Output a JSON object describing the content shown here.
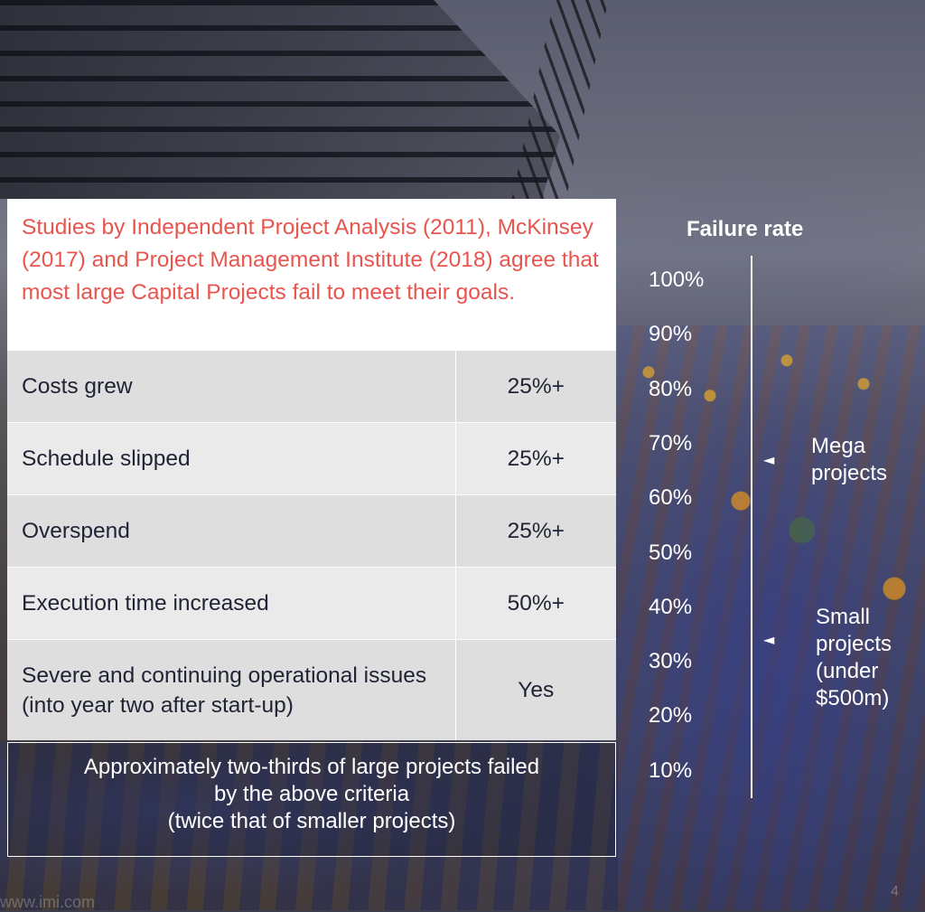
{
  "intro_text": "Studies by Independent Project Analysis (2011), McKinsey (2017) and Project Management Institute (2018) agree that most large Capital Projects fail to meet their goals.",
  "criteria": [
    {
      "label": "Costs grew",
      "value": "25%+"
    },
    {
      "label": "Schedule slipped",
      "value": "25%+"
    },
    {
      "label": "Overspend",
      "value": "25%+"
    },
    {
      "label": "Execution time increased",
      "value": "50%+"
    },
    {
      "label": "Severe and continuing operational issues (into year two after start-up)",
      "value": "Yes"
    }
  ],
  "summary_lines": [
    "Approximately two-thirds of large projects failed",
    "by the above criteria",
    "(twice that of smaller projects)"
  ],
  "chart_data": {
    "type": "other",
    "title": "Failure rate",
    "ticks": [
      "100%",
      "90%",
      "80%",
      "70%",
      "60%",
      "50%",
      "40%",
      "30%",
      "20%",
      "10%"
    ],
    "markers": [
      {
        "label": "Mega projects",
        "value": 67
      },
      {
        "label": "Small projects (under $500m)",
        "value": 34
      }
    ]
  },
  "marker_glyph": "◄",
  "footer_url": "www.imi.com",
  "page_number": "4",
  "colors": {
    "intro_text": "#e8554e",
    "row_dark": "#dedede",
    "row_light": "#eaeaea"
  }
}
